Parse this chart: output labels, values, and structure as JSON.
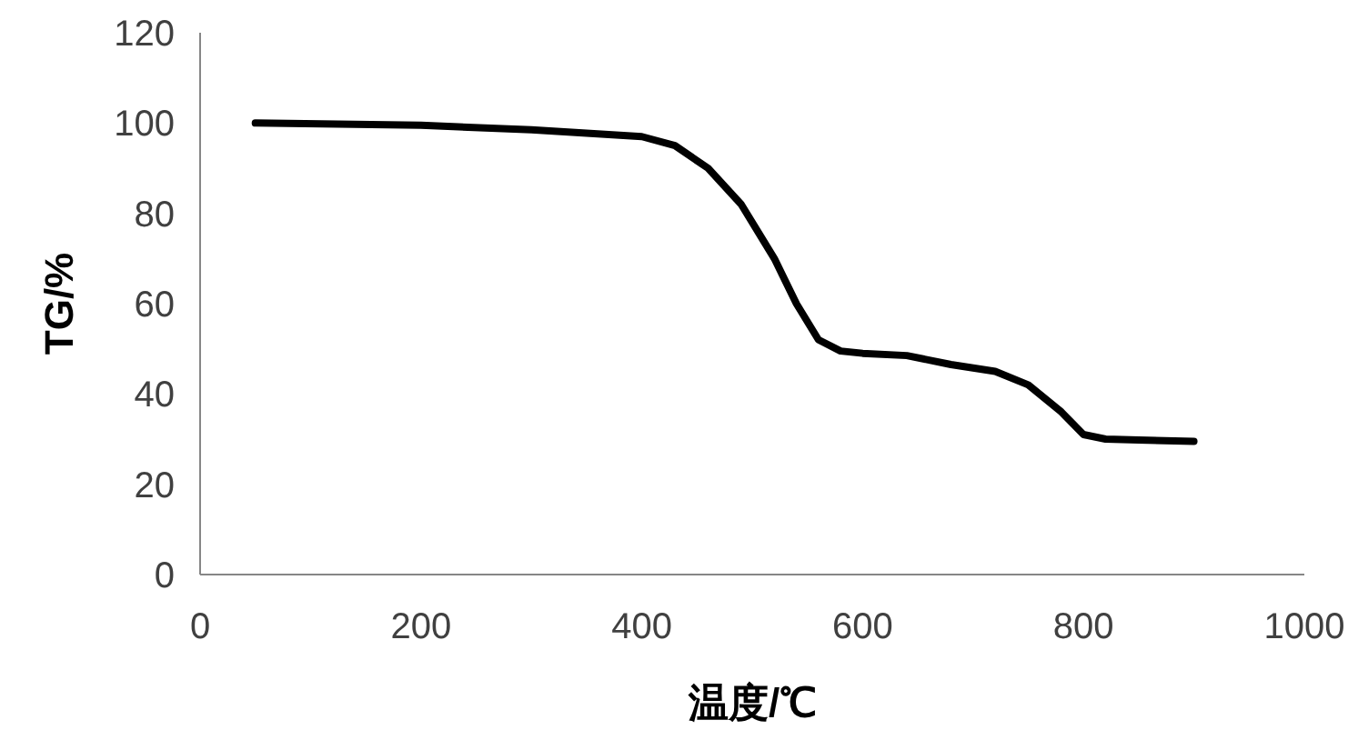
{
  "chart_data": {
    "type": "line",
    "xlabel": "温度/℃",
    "ylabel": "TG/%",
    "xlim": [
      0,
      1000
    ],
    "xticks": [
      0,
      200,
      400,
      600,
      800,
      1000
    ],
    "ylim": [
      0,
      120
    ],
    "yticks": [
      0,
      20,
      40,
      60,
      80,
      100,
      120
    ],
    "grid": false,
    "marker": "none",
    "line_style": "solid",
    "series": [
      {
        "color": "#000000",
        "x": [
          50,
          200,
          300,
          400,
          430,
          460,
          490,
          520,
          540,
          560,
          580,
          600,
          640,
          680,
          720,
          750,
          780,
          800,
          820,
          850,
          900
        ],
        "values": [
          100,
          99.5,
          98.5,
          97,
          95,
          90,
          82,
          70,
          60,
          52,
          49.5,
          49,
          48.5,
          46.5,
          45,
          42,
          36,
          31,
          30,
          29.8,
          29.5
        ]
      }
    ]
  }
}
